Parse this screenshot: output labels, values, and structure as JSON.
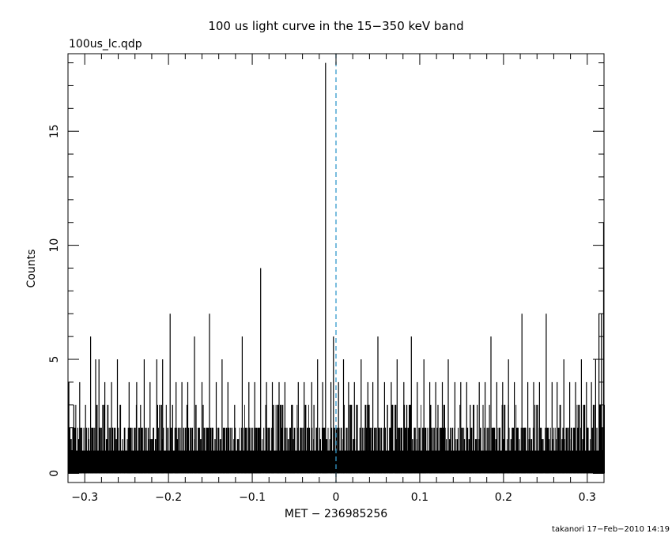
{
  "chart_data": {
    "type": "bar",
    "title": "100 us light curve in the 15−350 keV band",
    "subtitle": "100us_lc.qdp",
    "xlabel": "MET − 236985256",
    "ylabel": "Counts",
    "footer": "takanori 17−Feb−2010 14:19",
    "xlim": [
      -0.32,
      0.32
    ],
    "ylim": [
      -0.4,
      18.4
    ],
    "bin_width": 0.0001,
    "grid": false,
    "legend": "none",
    "x_ticks": [
      {
        "value": -0.3,
        "label": "−0.3"
      },
      {
        "value": -0.2,
        "label": "−0.2"
      },
      {
        "value": -0.1,
        "label": "−0.1"
      },
      {
        "value": 0,
        "label": "0"
      },
      {
        "value": 0.1,
        "label": "0.1"
      },
      {
        "value": 0.2,
        "label": "0.2"
      },
      {
        "value": 0.3,
        "label": "0.3"
      }
    ],
    "y_ticks": [
      {
        "value": 0,
        "label": "0"
      },
      {
        "value": 5,
        "label": "5"
      },
      {
        "value": 10,
        "label": "10"
      },
      {
        "value": 15,
        "label": "15"
      }
    ],
    "reference_line": {
      "x": 0,
      "color": "#3399cc",
      "style": "dashed"
    },
    "baseline_counts": "0–2 per bin across the full range",
    "peaks": {
      "x": [
        -0.319,
        -0.313,
        -0.306,
        -0.299,
        -0.293,
        -0.287,
        -0.283,
        -0.276,
        -0.268,
        -0.261,
        -0.247,
        -0.238,
        -0.229,
        -0.222,
        -0.214,
        -0.207,
        -0.198,
        -0.191,
        -0.184,
        -0.177,
        -0.169,
        -0.16,
        -0.151,
        -0.143,
        -0.136,
        -0.129,
        -0.121,
        -0.112,
        -0.104,
        -0.097,
        -0.09,
        -0.083,
        -0.076,
        -0.068,
        -0.061,
        -0.052,
        -0.045,
        -0.038,
        -0.029,
        -0.022,
        -0.016,
        -0.0125,
        -0.006,
        -0.003,
        0.003,
        0.009,
        0.015,
        0.022,
        0.03,
        0.038,
        0.044,
        0.05,
        0.058,
        0.066,
        0.073,
        0.081,
        0.09,
        0.097,
        0.105,
        0.112,
        0.119,
        0.127,
        0.134,
        0.142,
        0.149,
        0.156,
        0.164,
        0.171,
        0.178,
        0.185,
        0.192,
        0.199,
        0.206,
        0.213,
        0.222,
        0.229,
        0.236,
        0.243,
        0.251,
        0.258,
        0.264,
        0.272,
        0.279,
        0.286,
        0.293,
        0.299,
        0.305,
        0.31,
        0.314,
        0.317,
        0.3195
      ],
      "y": [
        4,
        3,
        4,
        3,
        6,
        5,
        5,
        4,
        4,
        5,
        4,
        4,
        5,
        4,
        5,
        5,
        7,
        4,
        4,
        4,
        6,
        4,
        7,
        4,
        5,
        4,
        3,
        6,
        4,
        4,
        9,
        4,
        4,
        4,
        4,
        3,
        4,
        4,
        4,
        5,
        4,
        18,
        4,
        6,
        4,
        5,
        4,
        4,
        5,
        4,
        4,
        6,
        4,
        4,
        5,
        4,
        6,
        4,
        5,
        4,
        4,
        4,
        5,
        4,
        4,
        4,
        3,
        4,
        4,
        6,
        4,
        4,
        5,
        4,
        7,
        4,
        4,
        4,
        7,
        4,
        4,
        5,
        4,
        4,
        5,
        4,
        4,
        5,
        7,
        7,
        11
      ]
    }
  }
}
